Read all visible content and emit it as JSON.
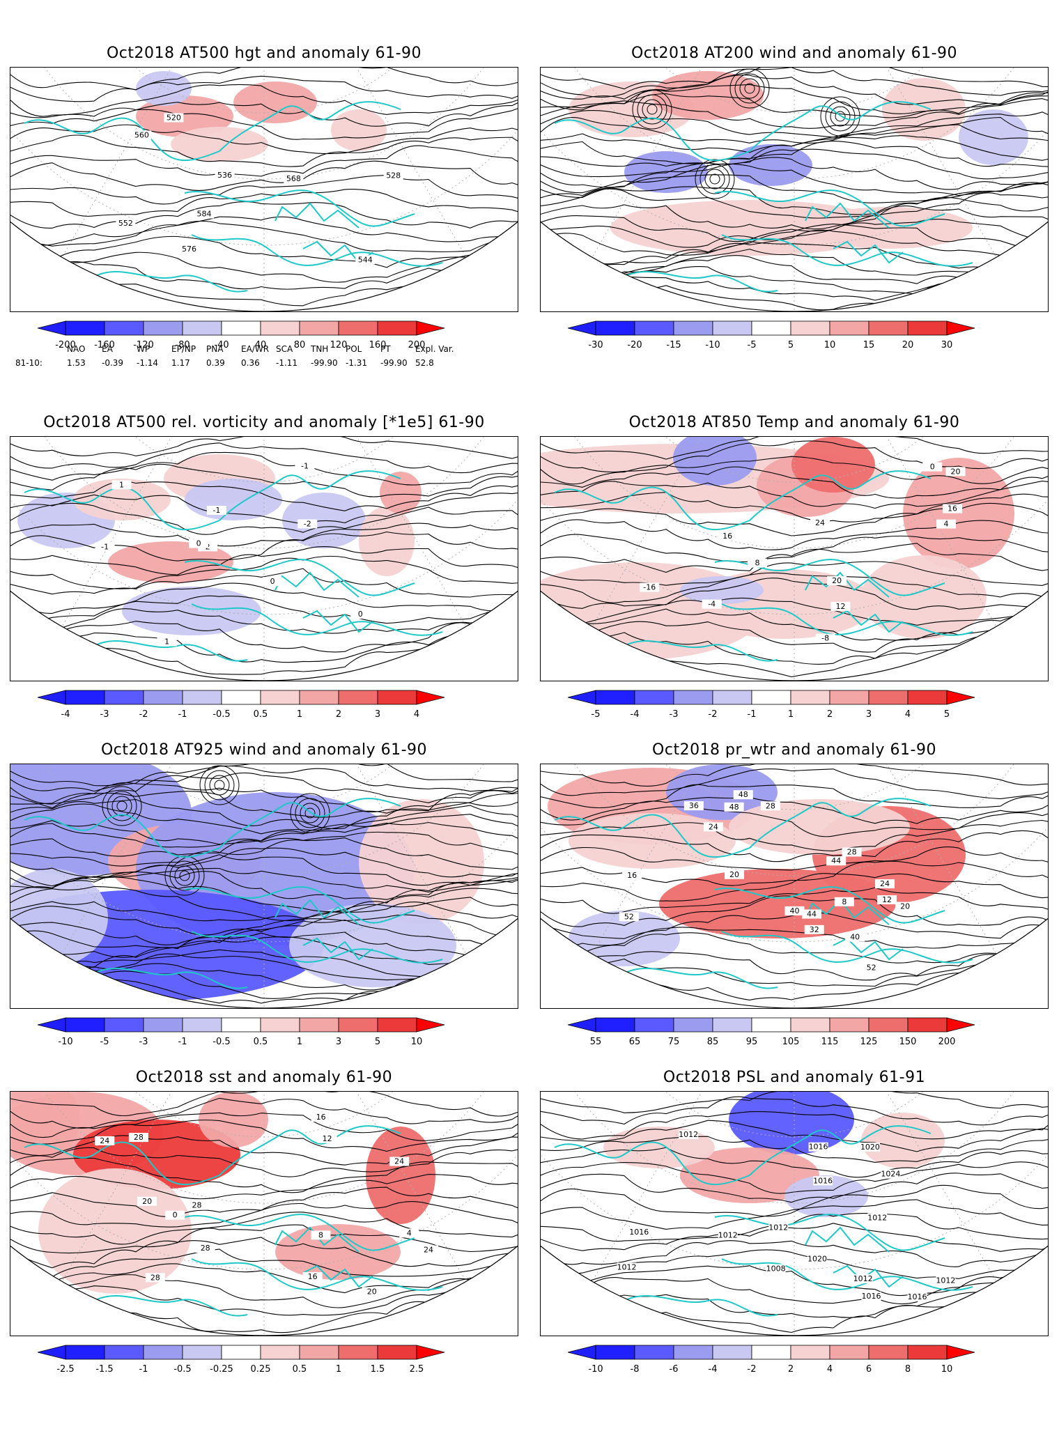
{
  "panels": [
    {
      "id": "p1",
      "title": "Oct2018 AT500 hgt and anomaly 61-90",
      "ticks": [
        "-200",
        "-160",
        "-120",
        "-80",
        "-40",
        "40",
        "80",
        "120",
        "160",
        "200"
      ],
      "contour_labels": [
        "520",
        "528",
        "536",
        "544",
        "552",
        "560",
        "568",
        "576",
        "584"
      ]
    },
    {
      "id": "p2",
      "title": "Oct2018 AT200 wind and anomaly 61-90",
      "ticks": [
        "-30",
        "-20",
        "-15",
        "-10",
        "-5",
        "5",
        "10",
        "15",
        "20",
        "30"
      ],
      "contour_labels": []
    },
    {
      "id": "p3",
      "title": "Oct2018 AT500 rel. vorticity and anomaly [*1e5] 61-90",
      "ticks": [
        "-4",
        "-3",
        "-2",
        "-1",
        "-0.5",
        "0.5",
        "1",
        "2",
        "3",
        "4"
      ],
      "contour_labels": [
        "0",
        "-1",
        "-2",
        "1",
        "2",
        "0",
        "-1",
        "1",
        "0",
        "-1"
      ]
    },
    {
      "id": "p4",
      "title": "Oct2018 AT850 Temp and anomaly 61-90",
      "ticks": [
        "-5",
        "-4",
        "-3",
        "-2",
        "-1",
        "1",
        "2",
        "3",
        "4",
        "5"
      ],
      "contour_labels": [
        "-16",
        "-8",
        "-4",
        "0",
        "4",
        "8",
        "12",
        "16",
        "20",
        "24",
        "20",
        "16"
      ]
    },
    {
      "id": "p5",
      "title": "Oct2018 AT925 wind and anomaly 61-90",
      "ticks": [
        "-10",
        "-5",
        "-3",
        "-1",
        "-0.5",
        "0.5",
        "1",
        "3",
        "5",
        "10"
      ],
      "contour_labels": []
    },
    {
      "id": "p6",
      "title": "Oct2018 pr_wtr and anomaly 61-90",
      "ticks": [
        "55",
        "65",
        "75",
        "85",
        "95",
        "105",
        "115",
        "125",
        "150",
        "200"
      ],
      "contour_labels": [
        "44",
        "52",
        "40",
        "48",
        "36",
        "32",
        "28",
        "24",
        "20",
        "16",
        "12",
        "8",
        "40",
        "44",
        "48",
        "52",
        "28",
        "24",
        "20"
      ]
    },
    {
      "id": "p7",
      "title": "Oct2018 sst and anomaly 61-90",
      "ticks": [
        "-2.5",
        "-1.5",
        "-1",
        "-0.5",
        "-0.25",
        "0.25",
        "0.5",
        "1",
        "1.5",
        "2.5"
      ],
      "contour_labels": [
        "24",
        "28",
        "28",
        "24",
        "20",
        "16",
        "12",
        "8",
        "4",
        "0",
        "28",
        "28",
        "24",
        "16",
        "20"
      ]
    },
    {
      "id": "p8",
      "title": "Oct2018 PSL and anomaly 61-91",
      "ticks": [
        "-10",
        "-8",
        "-6",
        "-4",
        "-2",
        "2",
        "4",
        "6",
        "8",
        "10"
      ],
      "contour_labels": [
        "1012",
        "1016",
        "1012",
        "1020",
        "1008",
        "1016",
        "1012",
        "1020",
        "1016",
        "1012",
        "1016",
        "1012",
        "1012",
        "1024",
        "1012",
        "1016"
      ]
    }
  ],
  "teleconnection": {
    "headers": [
      "NAO",
      "EA",
      "WP",
      "EP/NP",
      "PNA",
      "EA/WR",
      "SCA",
      "TNH",
      "POL",
      "PT",
      "Expl. Var."
    ],
    "row_label": "81-10:",
    "values": [
      "1.53",
      "-0.39",
      "-1.14",
      "1.17",
      "0.39",
      "0.36",
      "-1.11",
      "-99.90",
      "-1.31",
      "-99.90",
      "52.8"
    ]
  },
  "colors": {
    "blue4": "#1f1fff",
    "blue3": "#5a5aff",
    "blue2": "#9b9bf0",
    "blue1": "#c8c8f2",
    "white": "#ffffff",
    "red1": "#f6d2d2",
    "red2": "#f2a6a6",
    "red3": "#ee6e6e",
    "red4": "#ec3a3a",
    "red5": "#ff0000",
    "coast": "#1fc8c8",
    "contour": "#000000",
    "grid": "#b0b0b0"
  }
}
